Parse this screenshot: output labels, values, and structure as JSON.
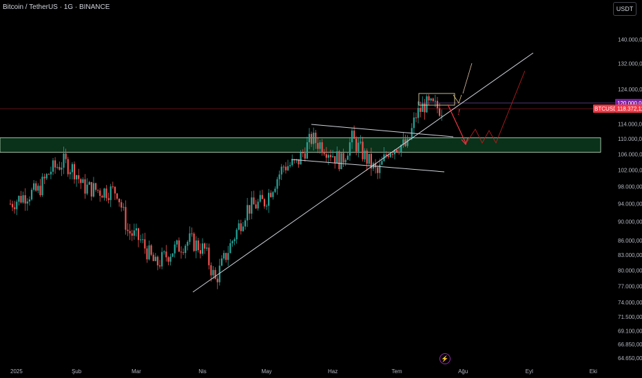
{
  "header": {
    "title": "Bitcoin / TetherUS · 1G · BINANCE",
    "currency_button": "USDT"
  },
  "price_tags": {
    "resistance": {
      "label": "120.000,00",
      "color": "#7b1fa2"
    },
    "symbol": {
      "label": "BTCUSDT",
      "color": "#f23645"
    },
    "current": {
      "label": "118.372,11",
      "color": "#f23645"
    }
  },
  "annotation": {
    "exclaim": "!"
  },
  "bottom_icon": "bolt-icon",
  "colors": {
    "up": "#26a69a",
    "down": "#ef5350",
    "zone_fill": "#0c3a1f",
    "zone_border": "#c8e6c9",
    "trendline": "#d1d4dc",
    "projection": "#b71c1c"
  },
  "chart_data": {
    "type": "candlestick",
    "title": "Bitcoin / TetherUS · 1G · BINANCE",
    "x_tick_labels": [
      "2025",
      "Şub",
      "Mar",
      "Nis",
      "May",
      "Haz",
      "Tem",
      "Ağu",
      "Eyl",
      "Eki"
    ],
    "y_tick_labels": [
      "140.000,00",
      "132.000,00",
      "124.000,00",
      "114.000,00",
      "110.000,00",
      "106.000,00",
      "102.000,00",
      "98.000,00",
      "94.000,00",
      "90.000,00",
      "86.000,00",
      "83.000,00",
      "80.000,00",
      "77.000,00",
      "74.000,00",
      "71.500,00",
      "69.100,00",
      "66.850,00",
      "64.650,00"
    ],
    "y_scale": "log",
    "ylim": [
      63500,
      152000
    ],
    "last_price": 118372.11,
    "resistance_level": 120000,
    "support_zone": [
      106500,
      110300
    ],
    "close_path": [
      [
        "2025-01-01",
        94000
      ],
      [
        "2025-01-08",
        96000
      ],
      [
        "2025-01-14",
        97000
      ],
      [
        "2025-01-20",
        102000
      ],
      [
        "2025-01-26",
        104000
      ],
      [
        "2025-01-31",
        102000
      ],
      [
        "2025-02-04",
        98000
      ],
      [
        "2025-02-12",
        97000
      ],
      [
        "2025-02-20",
        97000
      ],
      [
        "2025-02-25",
        88000
      ],
      [
        "2025-03-03",
        86000
      ],
      [
        "2025-03-10",
        81000
      ],
      [
        "2025-03-18",
        84000
      ],
      [
        "2025-03-26",
        86000
      ],
      [
        "2025-04-02",
        84000
      ],
      [
        "2025-04-07",
        78000
      ],
      [
        "2025-04-13",
        84000
      ],
      [
        "2025-04-22",
        93000
      ],
      [
        "2025-04-30",
        94500
      ],
      [
        "2025-05-09",
        103000
      ],
      [
        "2025-05-15",
        103500
      ],
      [
        "2025-05-22",
        110000
      ],
      [
        "2025-05-28",
        108000
      ],
      [
        "2025-06-05",
        104000
      ],
      [
        "2025-06-10",
        110000
      ],
      [
        "2025-06-22",
        101000
      ],
      [
        "2025-06-27",
        107000
      ],
      [
        "2025-07-02",
        108500
      ],
      [
        "2025-07-06",
        108000
      ],
      [
        "2025-07-10",
        116500
      ],
      [
        "2025-07-14",
        119500
      ],
      [
        "2025-07-22",
        118372
      ]
    ]
  }
}
